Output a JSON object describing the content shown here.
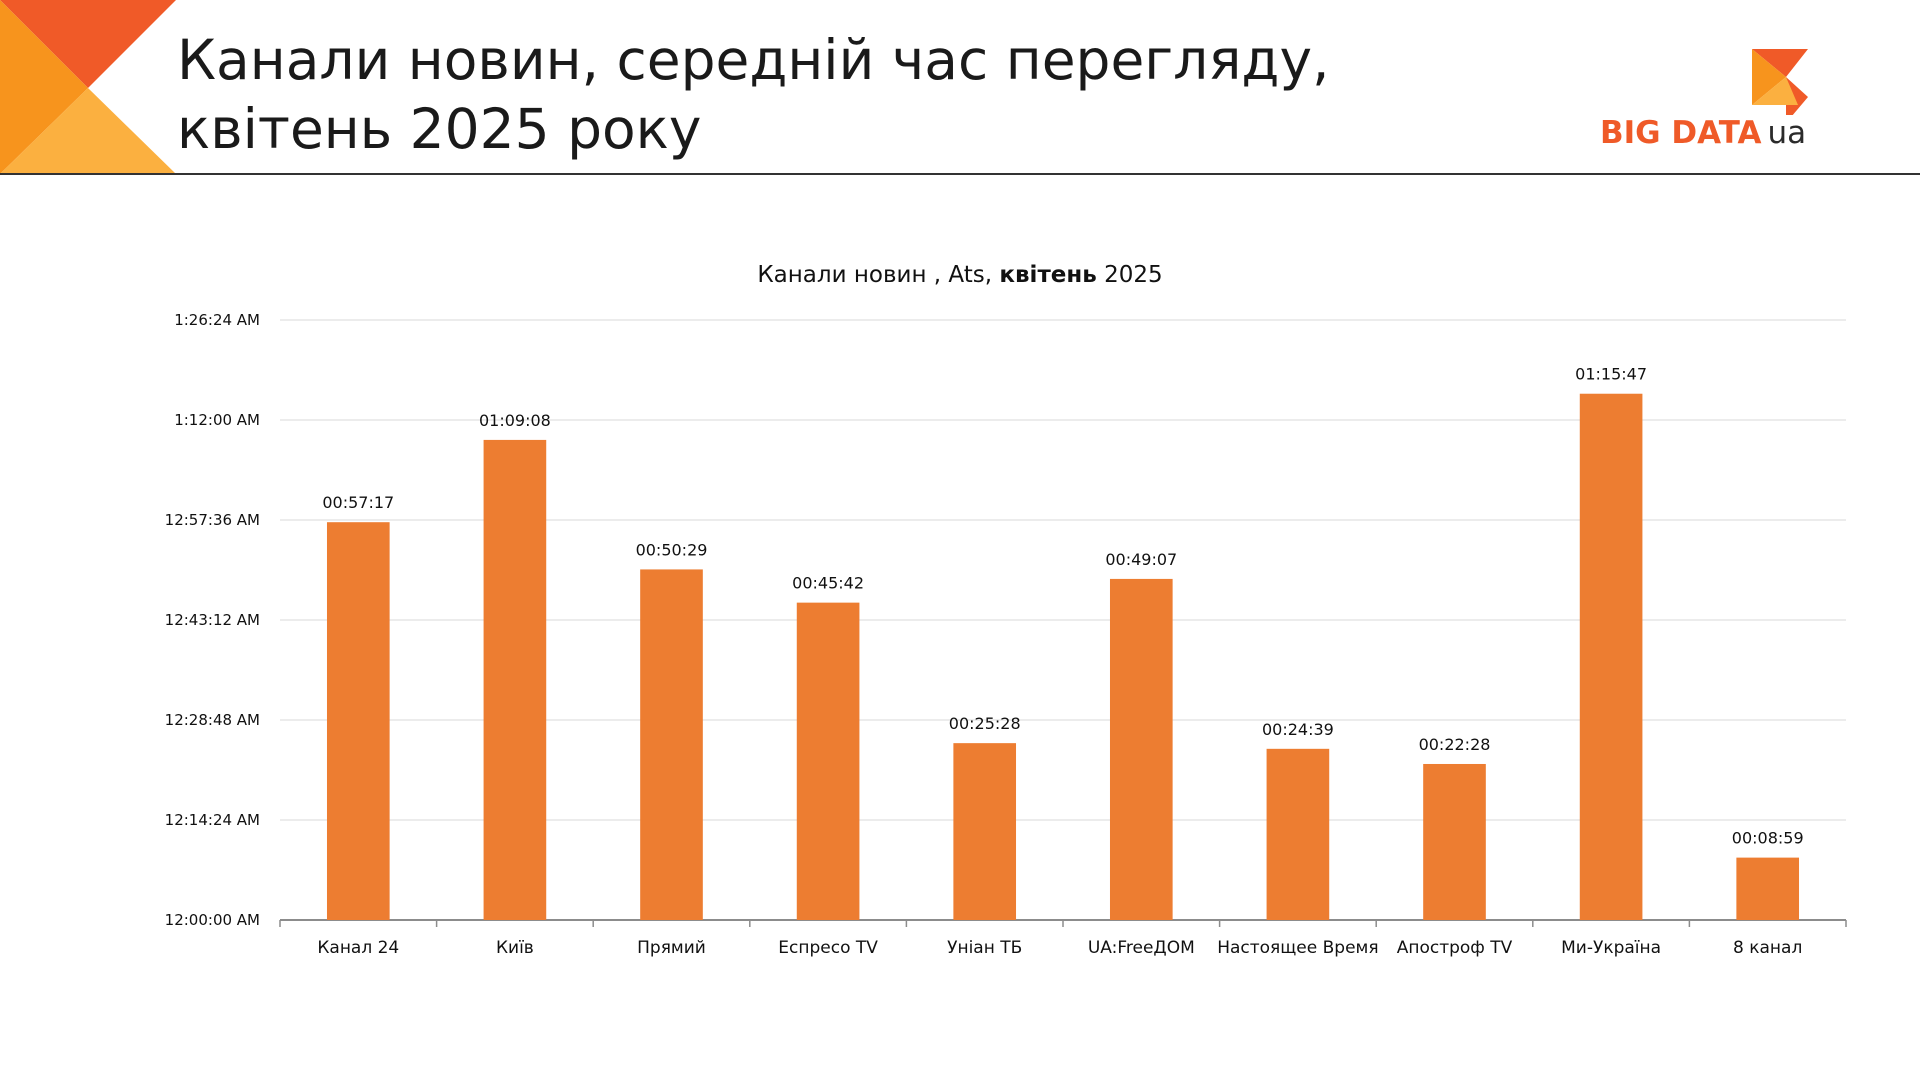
{
  "header": {
    "title_line1": "Канали новин, середній час перегляду,",
    "title_line2": "квітень 2025 року",
    "logo_text": "BIG DATA",
    "logo_suffix": "ua"
  },
  "colors": {
    "bar": "#ed7d31",
    "corner_dark": "#f05a28",
    "corner_mid": "#f7941d",
    "corner_light": "#fbb040",
    "grid": "#d9d9d9",
    "axis": "#8c8c8c"
  },
  "chart_data": {
    "type": "bar",
    "title_normal": "Канали новин , Ats, ",
    "title_bold": "квітень",
    "title_end": " 2025",
    "categories": [
      "Канал 24",
      "Київ",
      "Прямий",
      "Еспресо TV",
      "Уніан ТБ",
      "UA:FreeДОМ",
      "Настоящее Время",
      "Апостроф TV",
      "Ми-Україна",
      "8 канал"
    ],
    "values": [
      "00:57:17",
      "01:09:08",
      "00:50:29",
      "00:45:42",
      "00:25:28",
      "00:49:07",
      "00:24:39",
      "00:22:28",
      "01:15:47",
      "00:08:59"
    ],
    "y_ticks": [
      "12:00:00 AM",
      "12:14:24 AM",
      "12:28:48 AM",
      "12:43:12 AM",
      "12:57:36 AM",
      "1:12:00 AM",
      "1:26:24 AM"
    ],
    "ylim": [
      "00:00:00",
      "01:26:24"
    ],
    "xlabel": "",
    "ylabel": "",
    "grid": true,
    "legend": "none"
  }
}
